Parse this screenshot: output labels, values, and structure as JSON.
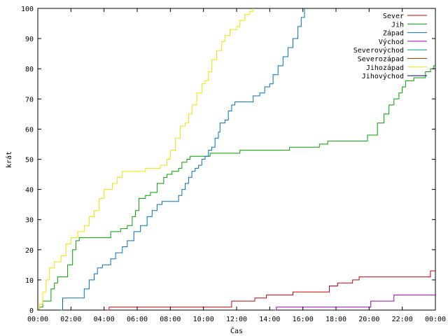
{
  "chart_data": {
    "type": "line",
    "title": "",
    "xlabel": "Čas",
    "ylabel": "krát",
    "xlim": [
      0,
      24
    ],
    "ylim": [
      0,
      100
    ],
    "x_ticks": [
      0,
      2,
      4,
      6,
      8,
      10,
      12,
      14,
      16,
      18,
      20,
      22,
      24
    ],
    "x_tick_labels": [
      "00:00",
      "02:00",
      "04:00",
      "06:00",
      "08:00",
      "10:00",
      "12:00",
      "14:00",
      "16:00",
      "18:00",
      "20:00",
      "22:00",
      "00:00"
    ],
    "y_ticks": [
      0,
      10,
      20,
      30,
      40,
      50,
      60,
      70,
      80,
      90,
      100
    ],
    "y_tick_labels": [
      "0",
      "10",
      "20",
      "30",
      "40",
      "50",
      "60",
      "70",
      "80",
      "90",
      "100"
    ],
    "grid": false,
    "legend_position": "top-right",
    "x_unit": "hours",
    "series": [
      {
        "name": "Sever",
        "color": "#cc0000",
        "points": [
          [
            4.2,
            0
          ],
          [
            4.3,
            1
          ],
          [
            11.6,
            1
          ],
          [
            11.7,
            3
          ],
          [
            13.0,
            3
          ],
          [
            13.1,
            4
          ],
          [
            13.7,
            4
          ],
          [
            13.8,
            5
          ],
          [
            15.3,
            5
          ],
          [
            15.4,
            6
          ],
          [
            17.5,
            6
          ],
          [
            17.6,
            8
          ],
          [
            18.0,
            8
          ],
          [
            18.1,
            9
          ],
          [
            18.9,
            9
          ],
          [
            19.0,
            10
          ],
          [
            19.3,
            10
          ],
          [
            19.4,
            11
          ],
          [
            23.6,
            11
          ],
          [
            23.7,
            13
          ],
          [
            24.0,
            13
          ]
        ]
      },
      {
        "name": "Jih",
        "color": "#00a000",
        "points": [
          [
            0,
            0
          ],
          [
            0.1,
            1
          ],
          [
            0.3,
            3
          ],
          [
            0.6,
            3
          ],
          [
            0.8,
            7
          ],
          [
            1.0,
            9
          ],
          [
            1.2,
            11
          ],
          [
            1.6,
            11
          ],
          [
            1.8,
            15
          ],
          [
            2.1,
            20
          ],
          [
            2.3,
            23
          ],
          [
            2.5,
            24
          ],
          [
            4.2,
            24
          ],
          [
            4.4,
            26
          ],
          [
            4.8,
            26
          ],
          [
            5.0,
            27
          ],
          [
            5.4,
            28
          ],
          [
            5.7,
            31
          ],
          [
            5.9,
            33
          ],
          [
            6.1,
            37
          ],
          [
            6.5,
            38
          ],
          [
            6.8,
            39
          ],
          [
            7.0,
            39
          ],
          [
            7.2,
            42
          ],
          [
            7.6,
            44
          ],
          [
            7.8,
            45
          ],
          [
            8.1,
            46
          ],
          [
            8.5,
            47
          ],
          [
            8.7,
            49
          ],
          [
            9.0,
            50
          ],
          [
            9.2,
            51
          ],
          [
            10.2,
            51
          ],
          [
            10.4,
            52
          ],
          [
            12.0,
            52
          ],
          [
            12.2,
            53
          ],
          [
            15.0,
            53
          ],
          [
            15.2,
            54
          ],
          [
            16.5,
            54
          ],
          [
            17.0,
            55
          ],
          [
            17.5,
            56
          ],
          [
            19.7,
            56
          ],
          [
            19.9,
            58
          ],
          [
            20.3,
            58
          ],
          [
            20.5,
            62
          ],
          [
            20.9,
            65
          ],
          [
            21.2,
            68
          ],
          [
            21.5,
            70
          ],
          [
            21.8,
            72
          ],
          [
            22.0,
            74
          ],
          [
            22.2,
            76
          ],
          [
            22.7,
            77
          ],
          [
            23.2,
            77
          ],
          [
            23.4,
            79
          ],
          [
            23.7,
            80
          ],
          [
            23.9,
            81
          ],
          [
            24.0,
            81
          ]
        ]
      },
      {
        "name": "Západ",
        "color": "#0070c0",
        "points": [
          [
            1.4,
            0
          ],
          [
            1.5,
            4
          ],
          [
            2.6,
            4
          ],
          [
            2.8,
            7
          ],
          [
            3.1,
            10
          ],
          [
            3.4,
            12
          ],
          [
            3.6,
            14
          ],
          [
            3.9,
            15
          ],
          [
            4.4,
            17
          ],
          [
            4.7,
            19
          ],
          [
            5.1,
            21
          ],
          [
            5.4,
            23
          ],
          [
            5.8,
            26
          ],
          [
            6.2,
            28
          ],
          [
            6.6,
            31
          ],
          [
            6.9,
            33
          ],
          [
            7.2,
            35
          ],
          [
            7.5,
            36
          ],
          [
            8.2,
            36
          ],
          [
            8.5,
            38
          ],
          [
            8.7,
            40
          ],
          [
            8.9,
            42
          ],
          [
            9.1,
            44
          ],
          [
            9.3,
            46
          ],
          [
            9.5,
            47
          ],
          [
            9.7,
            48
          ],
          [
            9.9,
            50
          ],
          [
            10.1,
            51
          ],
          [
            10.3,
            53
          ],
          [
            10.5,
            54
          ],
          [
            10.7,
            57
          ],
          [
            10.9,
            59
          ],
          [
            11.0,
            62
          ],
          [
            11.3,
            63
          ],
          [
            11.5,
            66
          ],
          [
            11.7,
            68
          ],
          [
            11.9,
            69
          ],
          [
            12.8,
            69
          ],
          [
            13.0,
            71
          ],
          [
            13.4,
            72
          ],
          [
            13.7,
            74
          ],
          [
            14.0,
            75
          ],
          [
            14.2,
            78
          ],
          [
            14.5,
            81
          ],
          [
            14.8,
            84
          ],
          [
            15.1,
            87
          ],
          [
            15.4,
            90
          ],
          [
            15.7,
            94
          ],
          [
            15.9,
            97
          ],
          [
            16.1,
            100
          ]
        ]
      },
      {
        "name": "Východ",
        "color": "#a000c0",
        "points": [
          [
            14.3,
            0
          ],
          [
            14.4,
            1
          ],
          [
            20.0,
            1
          ],
          [
            20.1,
            3
          ],
          [
            21.4,
            3
          ],
          [
            21.5,
            5
          ],
          [
            24.0,
            5
          ]
        ]
      },
      {
        "name": "Severovýchod",
        "color": "#00a0a0",
        "points": []
      },
      {
        "name": "Severozápad",
        "color": "#c04000",
        "points": []
      },
      {
        "name": "Jihozápad",
        "color": "#e8e800",
        "points": [
          [
            0,
            0
          ],
          [
            0.1,
            2
          ],
          [
            0.3,
            6
          ],
          [
            0.5,
            10
          ],
          [
            0.7,
            14
          ],
          [
            1.0,
            16
          ],
          [
            1.4,
            18
          ],
          [
            1.7,
            22
          ],
          [
            2.0,
            24
          ],
          [
            2.4,
            26
          ],
          [
            2.8,
            28
          ],
          [
            3.1,
            31
          ],
          [
            3.4,
            33
          ],
          [
            3.7,
            37
          ],
          [
            4.0,
            40
          ],
          [
            4.5,
            42
          ],
          [
            4.8,
            44
          ],
          [
            5.1,
            46
          ],
          [
            6.2,
            46
          ],
          [
            6.5,
            47
          ],
          [
            7.2,
            47
          ],
          [
            7.4,
            48
          ],
          [
            7.8,
            50
          ],
          [
            8.0,
            53
          ],
          [
            8.3,
            57
          ],
          [
            8.6,
            61
          ],
          [
            8.9,
            62
          ],
          [
            9.1,
            65
          ],
          [
            9.3,
            68
          ],
          [
            9.6,
            72
          ],
          [
            9.9,
            75
          ],
          [
            10.1,
            76
          ],
          [
            10.3,
            79
          ],
          [
            10.5,
            83
          ],
          [
            10.8,
            86
          ],
          [
            11.1,
            89
          ],
          [
            11.3,
            91
          ],
          [
            11.6,
            93
          ],
          [
            12.0,
            94
          ],
          [
            12.2,
            96
          ],
          [
            12.5,
            98
          ],
          [
            12.8,
            99
          ],
          [
            13.0,
            100
          ]
        ]
      },
      {
        "name": "Jihovýchod",
        "color": "#000080",
        "points": []
      }
    ]
  }
}
